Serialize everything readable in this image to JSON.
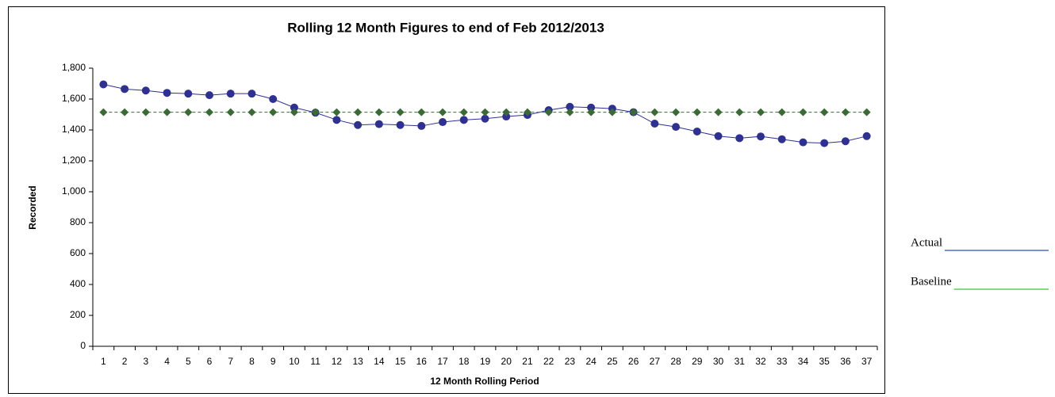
{
  "chart_data": {
    "type": "line",
    "title": "Rolling 12 Month Figures to end of Feb 2012/2013",
    "x_label": "12 Month Rolling Period",
    "y_label": "Recorded",
    "categories": [
      "1",
      "2",
      "3",
      "4",
      "5",
      "6",
      "7",
      "8",
      "9",
      "10",
      "11",
      "12",
      "13",
      "14",
      "15",
      "16",
      "17",
      "18",
      "19",
      "20",
      "21",
      "22",
      "23",
      "24",
      "25",
      "26",
      "27",
      "28",
      "29",
      "30",
      "31",
      "32",
      "33",
      "34",
      "35",
      "36",
      "37"
    ],
    "series": [
      {
        "name": "Actual",
        "color": "#2e3192",
        "marker": "circle",
        "line_style": "solid",
        "legend_color": "#2f4fb5",
        "values": [
          1695,
          1665,
          1655,
          1640,
          1635,
          1625,
          1635,
          1635,
          1600,
          1545,
          1512,
          1465,
          1432,
          1438,
          1432,
          1426,
          1451,
          1465,
          1473,
          1487,
          1497,
          1528,
          1550,
          1545,
          1538,
          1515,
          1441,
          1420,
          1390,
          1360,
          1347,
          1358,
          1340,
          1320,
          1315,
          1327,
          1360
        ]
      },
      {
        "name": "Baseline",
        "color": "#3a6b35",
        "marker": "diamond",
        "line_style": "dashed",
        "legend_color": "#33cc33",
        "values": [
          1515,
          1515,
          1515,
          1515,
          1515,
          1515,
          1515,
          1515,
          1515,
          1515,
          1515,
          1515,
          1515,
          1515,
          1515,
          1515,
          1515,
          1515,
          1515,
          1515,
          1515,
          1515,
          1515,
          1515,
          1515,
          1515,
          1515,
          1515,
          1515,
          1515,
          1515,
          1515,
          1515,
          1515,
          1515,
          1515,
          1515
        ]
      }
    ],
    "ylim": [
      0,
      1800
    ],
    "yticks": [
      0,
      200,
      400,
      600,
      800,
      {
        "value": 1000,
        "label": "1,000"
      },
      {
        "value": 1200,
        "label": "1,200"
      },
      {
        "value": 1400,
        "label": "1,400"
      },
      {
        "value": 1600,
        "label": "1,600"
      },
      {
        "value": 1800,
        "label": "1,800"
      }
    ],
    "grid": false,
    "legend": "right"
  }
}
